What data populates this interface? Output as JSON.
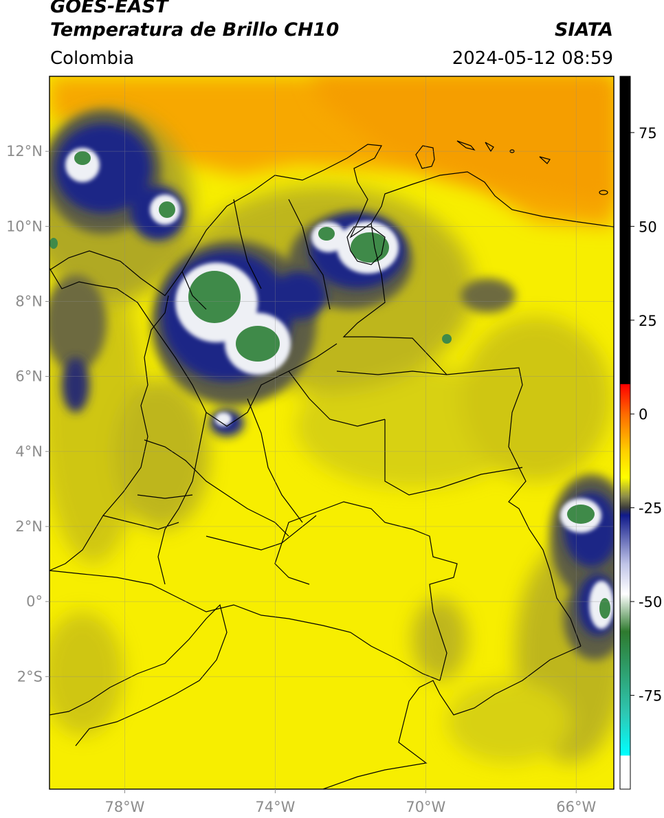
{
  "header": {
    "satellite": "GOES-EAST",
    "product": "Temperatura de Brillo CH10",
    "region": "Colombia",
    "agency": "SIATA",
    "timestamp": "2024-05-12 08:59"
  },
  "map": {
    "lon_range": [
      -80,
      -65
    ],
    "lat_range": [
      -5,
      14
    ],
    "lat_ticks": [
      {
        "value": 12,
        "label": "12°N"
      },
      {
        "value": 10,
        "label": "10°N"
      },
      {
        "value": 8,
        "label": "8°N"
      },
      {
        "value": 6,
        "label": "6°N"
      },
      {
        "value": 4,
        "label": "4°N"
      },
      {
        "value": 2,
        "label": "2°N"
      },
      {
        "value": 0,
        "label": "0°"
      },
      {
        "value": -2,
        "label": "2°S"
      }
    ],
    "lon_ticks": [
      {
        "value": -78,
        "label": "78°W"
      },
      {
        "value": -74,
        "label": "74°W"
      },
      {
        "value": -70,
        "label": "70°W"
      },
      {
        "value": -66,
        "label": "66°W"
      }
    ],
    "grid": true,
    "field_colors": {
      "sea_warm": "#f7a800",
      "land_warm": "#f7ee00",
      "land_mid": "#c9c018",
      "cold_gray": "#5d5d45",
      "cold_navy": "#1c2786",
      "very_cold_white": "#eef0f5",
      "coldest_green": "#3f8a49"
    }
  },
  "colorbar": {
    "ticks": [
      {
        "value": 75,
        "label": "75"
      },
      {
        "value": 50,
        "label": "50"
      },
      {
        "value": 25,
        "label": "25"
      },
      {
        "value": 0,
        "label": "0"
      },
      {
        "value": -25,
        "label": "-25"
      },
      {
        "value": -50,
        "label": "-50"
      },
      {
        "value": -75,
        "label": "-75"
      }
    ],
    "range": [
      -100,
      90
    ],
    "stops": [
      {
        "value": 90,
        "color": "#000000"
      },
      {
        "value": 8,
        "color": "#000000"
      },
      {
        "value": 7.9,
        "color": "#ff0000"
      },
      {
        "value": 0,
        "color": "#ff6a00"
      },
      {
        "value": -10,
        "color": "#ffd000"
      },
      {
        "value": -17,
        "color": "#ffff00"
      },
      {
        "value": -22,
        "color": "#8c8c4a"
      },
      {
        "value": -25,
        "color": "#3c3c3c"
      },
      {
        "value": -27,
        "color": "#101a8a"
      },
      {
        "value": -40,
        "color": "#c0c4e8"
      },
      {
        "value": -48,
        "color": "#ffffff"
      },
      {
        "value": -58,
        "color": "#2e7a2e"
      },
      {
        "value": -80,
        "color": "#2ec8b4"
      },
      {
        "value": -91,
        "color": "#00ffff"
      },
      {
        "value": -91.1,
        "color": "#ffffff"
      },
      {
        "value": -100,
        "color": "#ffffff"
      }
    ]
  }
}
